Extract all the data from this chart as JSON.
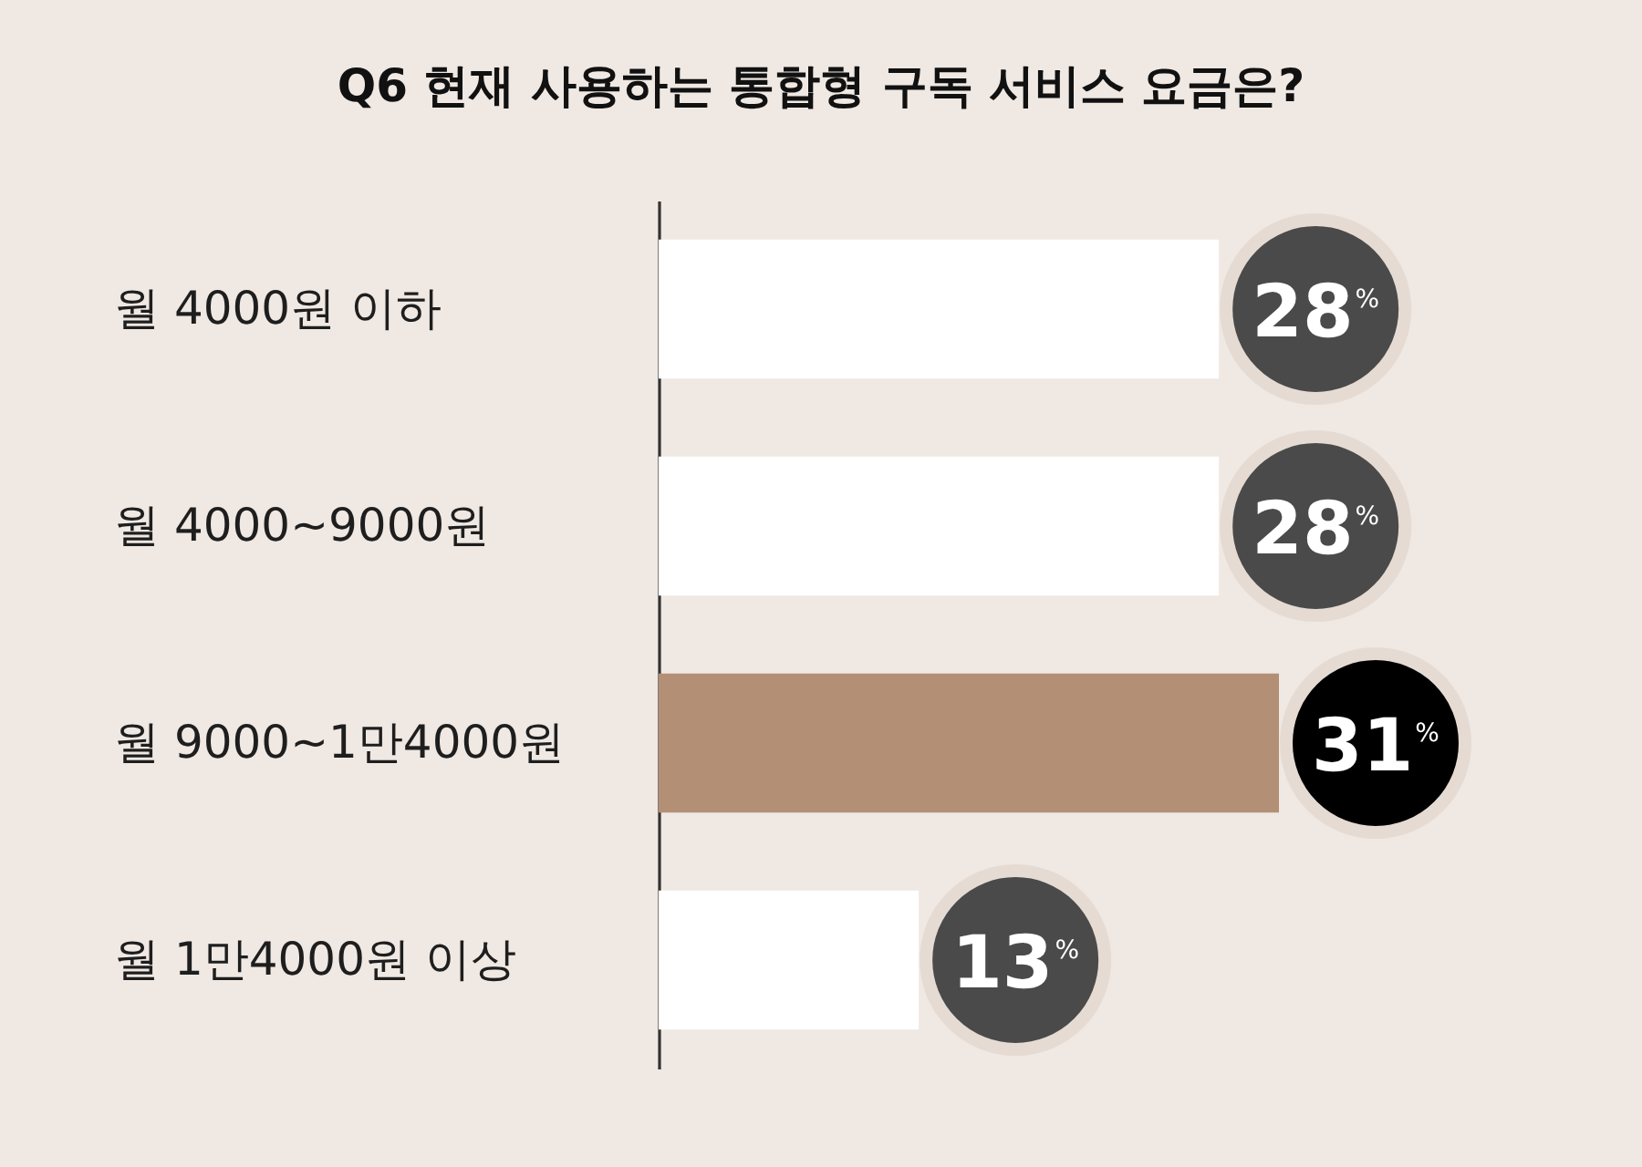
{
  "chart_data": {
    "type": "bar",
    "orientation": "horizontal",
    "title": "Q6 현재 사용하는 통합형 구독 서비스 요금은?",
    "categories": [
      "월 4000원 이하",
      "월 4000~9000원",
      "월 9000~1만4000원",
      "월 1만4000원 이상"
    ],
    "values": [
      28,
      28,
      31,
      13
    ],
    "colors": [
      "#ffffff",
      "#ffffff",
      "#b38f76",
      "#ffffff"
    ],
    "value_labels": [
      "28$^{%}$",
      "28$^{%}$",
      "31$^{%}$",
      "13$^{%}$"
    ],
    "tick_labels": "y"
  }
}
